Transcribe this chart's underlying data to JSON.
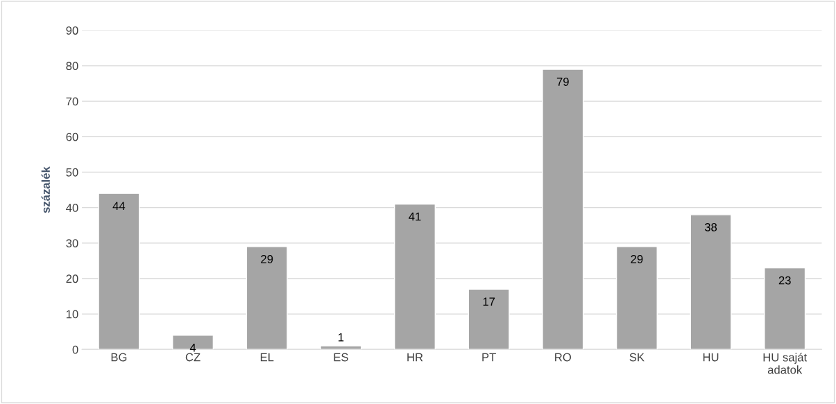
{
  "chart_data": {
    "type": "bar",
    "ylabel": "százalék",
    "categories": [
      "BG",
      "CZ",
      "EL",
      "ES",
      "HR",
      "PT",
      "RO",
      "SK",
      "HU",
      "HU saját\nadatok"
    ],
    "values": [
      44,
      4,
      29,
      1,
      41,
      17,
      79,
      29,
      38,
      23
    ],
    "color": "#a5a5a5",
    "ylim": [
      0,
      90
    ],
    "yticks": [
      0,
      10,
      20,
      30,
      40,
      50,
      60,
      70,
      80,
      90
    ],
    "grid": "y",
    "data_labels": true,
    "legend": false
  }
}
